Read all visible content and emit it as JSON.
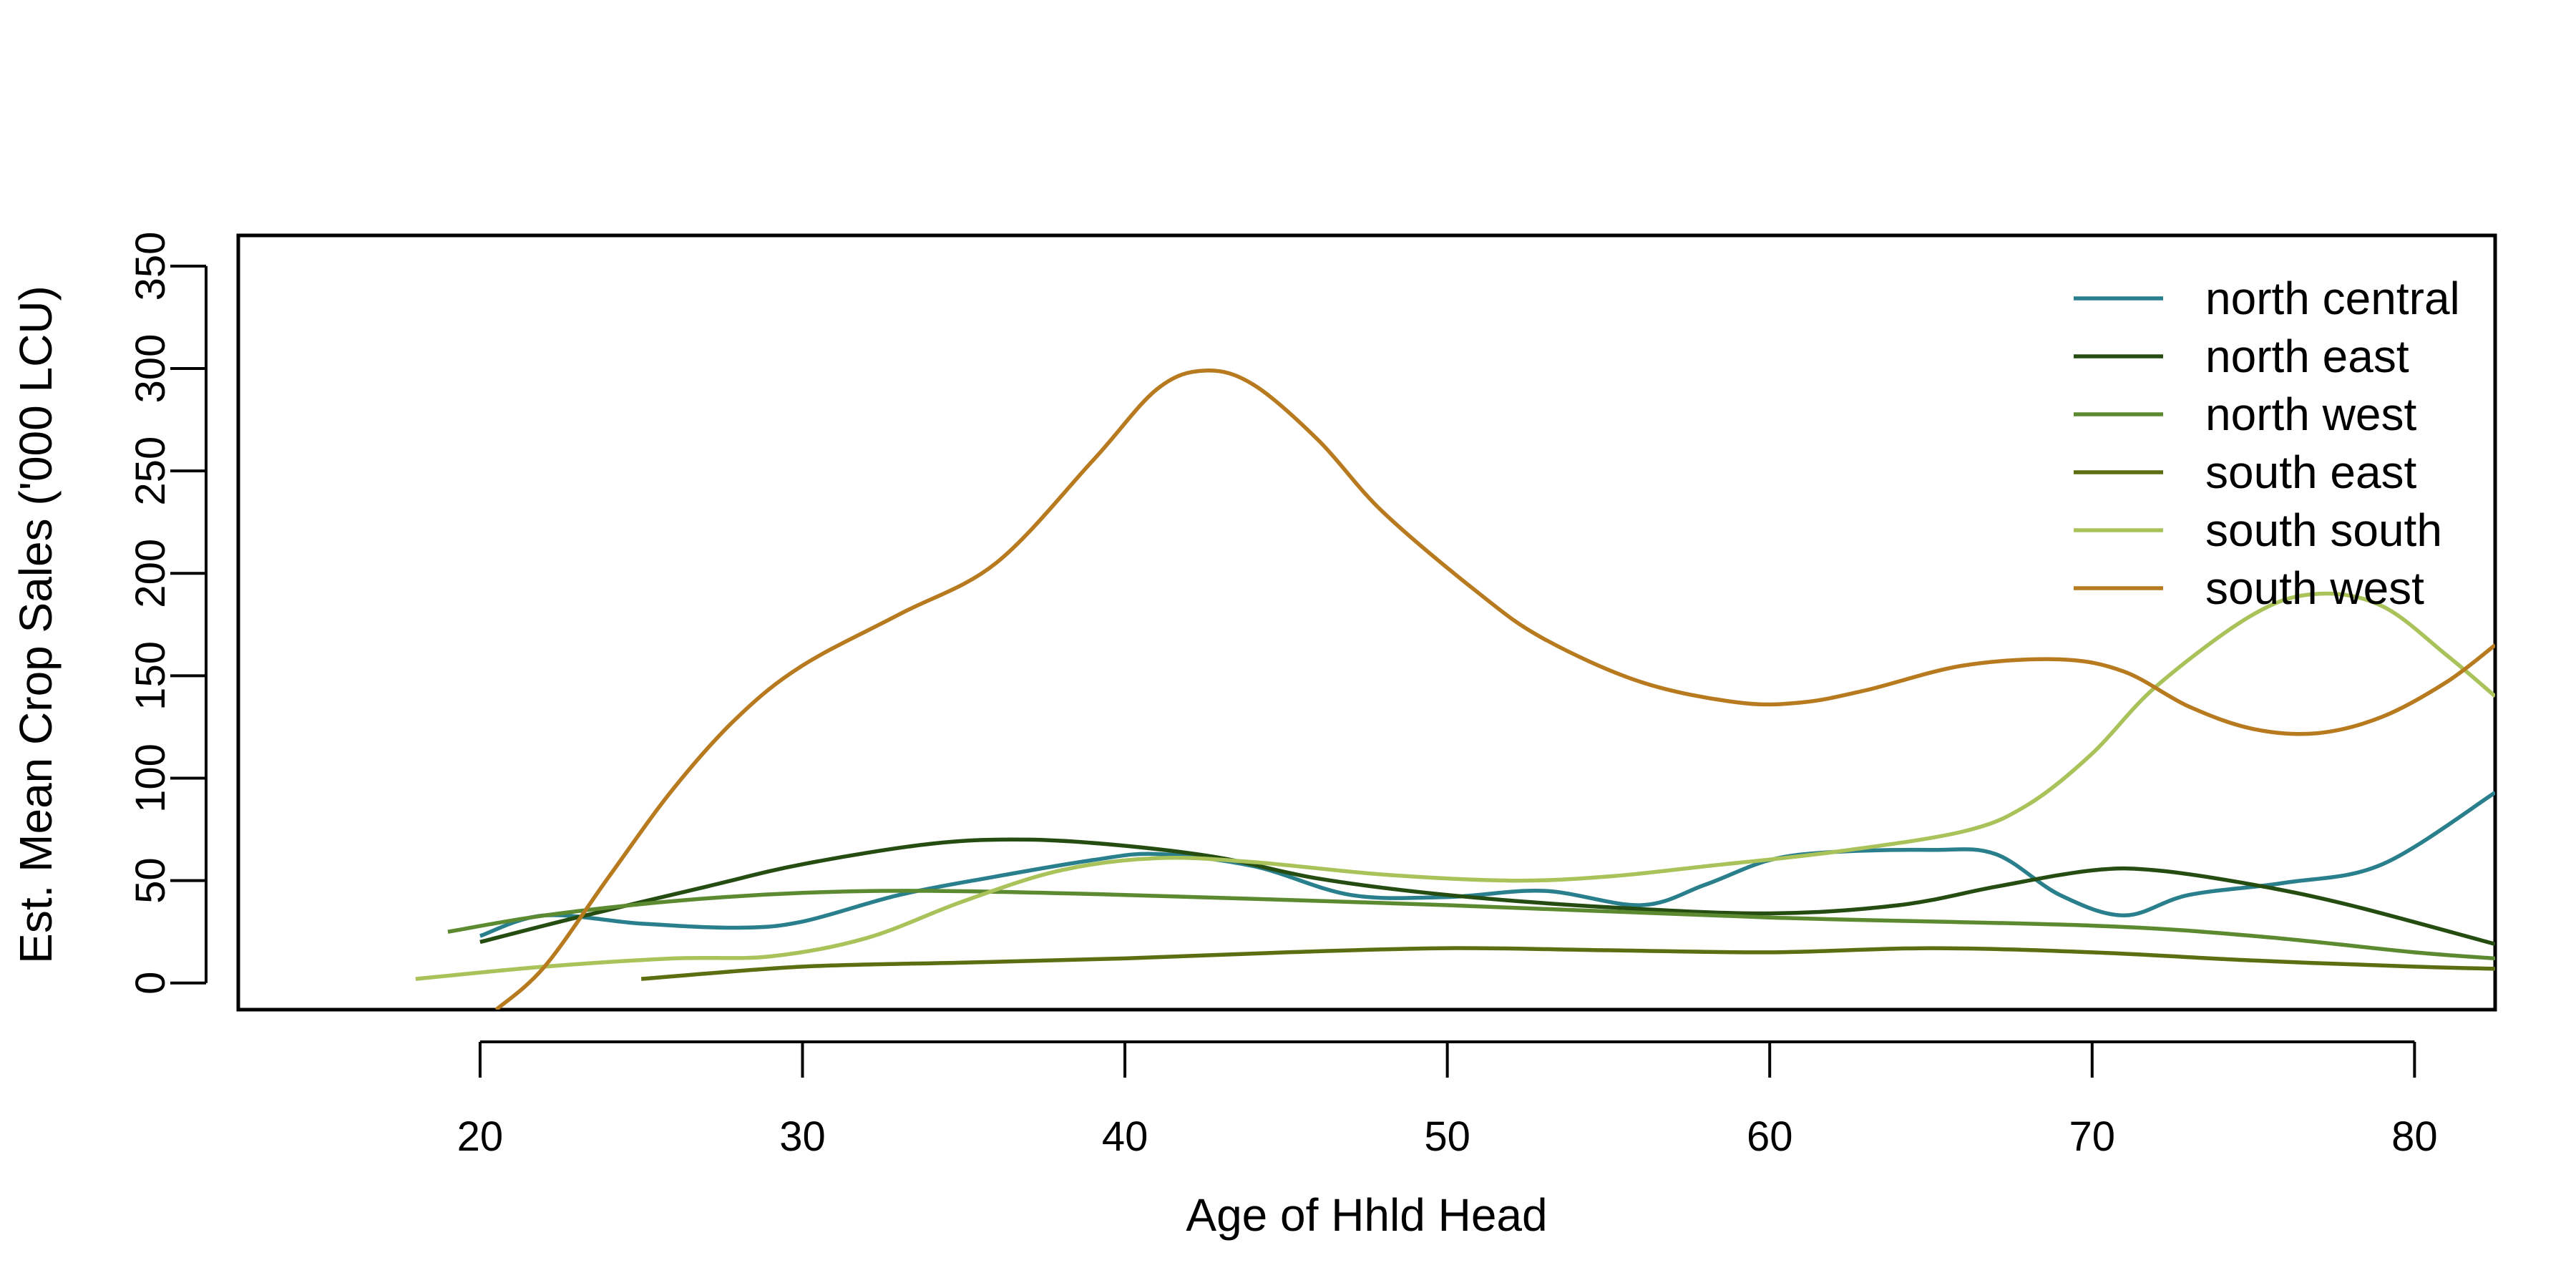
{
  "chart_data": {
    "type": "line",
    "title": "",
    "xlabel": "Age of Hhld Head",
    "ylabel": "Est. Mean Crop Sales ('000 LCU)",
    "xlim": [
      12.5,
      82.5
    ],
    "ylim": [
      -13,
      365
    ],
    "xticks": [
      20,
      30,
      40,
      50,
      60,
      70,
      80
    ],
    "yticks": [
      0,
      50,
      100,
      150,
      200,
      250,
      300,
      350
    ],
    "legend_position": "top-right",
    "grid": false,
    "series": [
      {
        "name": "north central",
        "color": "#2a7f8c",
        "x": [
          20,
          22,
          25,
          28,
          30,
          33,
          36,
          39,
          41,
          44,
          47,
          50,
          53,
          56,
          58,
          60,
          62,
          65,
          67,
          69,
          71,
          73,
          76,
          79,
          82.5
        ],
        "y": [
          23,
          33,
          29,
          27,
          30,
          43,
          52,
          60,
          63,
          57,
          43,
          42,
          45,
          38,
          48,
          60,
          64,
          65,
          63,
          43,
          33,
          43,
          49,
          58,
          93
        ]
      },
      {
        "name": "north east",
        "color": "#254d12",
        "x": [
          20,
          23,
          27,
          30,
          34,
          37,
          40,
          43,
          46,
          50,
          55,
          60,
          64,
          67,
          70,
          72,
          75,
          78,
          82.5
        ],
        "y": [
          20,
          32,
          47,
          58,
          68,
          70,
          67,
          61,
          51,
          43,
          37,
          34,
          38,
          47,
          55,
          55,
          48,
          38,
          19
        ]
      },
      {
        "name": "north west",
        "color": "#5c8a31",
        "x": [
          19,
          22,
          26,
          30,
          34,
          40,
          50,
          60,
          70,
          75,
          80,
          82.5
        ],
        "y": [
          25,
          33,
          40,
          44,
          45,
          43,
          38,
          32,
          28,
          23,
          15,
          12
        ]
      },
      {
        "name": "south east",
        "color": "#5c6e12",
        "x": [
          25,
          30,
          35,
          40,
          45,
          50,
          55,
          60,
          65,
          70,
          75,
          80,
          82.5
        ],
        "y": [
          2,
          8,
          10,
          12,
          15,
          17,
          16,
          15,
          17,
          15,
          11,
          8,
          7
        ]
      },
      {
        "name": "south south",
        "color": "#a9c25a",
        "x": [
          18,
          22,
          26,
          29,
          32,
          35,
          38,
          41,
          44,
          48,
          52,
          55,
          58,
          62,
          66,
          68,
          70,
          72,
          75,
          77,
          79,
          81,
          82.5
        ],
        "y": [
          2,
          8,
          12,
          13,
          22,
          40,
          55,
          61,
          59,
          53,
          50,
          52,
          57,
          64,
          74,
          87,
          112,
          145,
          180,
          190,
          184,
          160,
          140
        ]
      },
      {
        "name": "south west",
        "color": "#b87a1f",
        "x": [
          20.5,
          22,
          24,
          26,
          28,
          30,
          33,
          36,
          39,
          41,
          42.5,
          44,
          46,
          48,
          51,
          53,
          56,
          59,
          61,
          63,
          66,
          69,
          71,
          73,
          75,
          77,
          79,
          81,
          82.5
        ],
        "y": [
          -13,
          8,
          52,
          95,
          130,
          155,
          180,
          205,
          255,
          290,
          299,
          292,
          265,
          230,
          190,
          168,
          147,
          137,
          137,
          143,
          155,
          158,
          152,
          135,
          124,
          122,
          130,
          147,
          165
        ]
      }
    ]
  }
}
